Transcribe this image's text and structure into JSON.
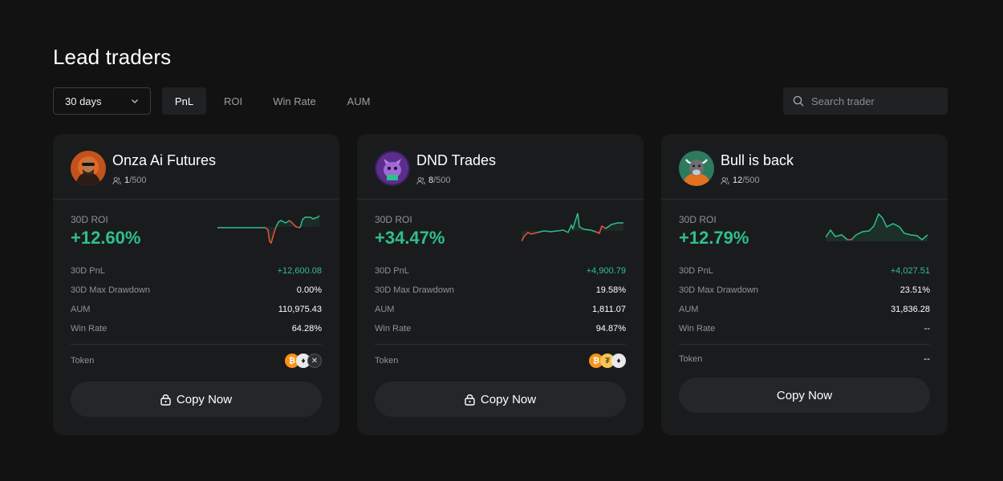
{
  "page": {
    "title": "Lead traders"
  },
  "filters": {
    "period": "30 days",
    "tabs": [
      {
        "label": "PnL",
        "active": true
      },
      {
        "label": "ROI",
        "active": false
      },
      {
        "label": "Win Rate",
        "active": false
      },
      {
        "label": "AUM",
        "active": false
      }
    ],
    "search_placeholder": "Search trader"
  },
  "colors": {
    "positive": "#2ec08b",
    "negative": "#f0523c",
    "background": "#121212",
    "card": "#1a1b1d"
  },
  "cards": [
    {
      "name": "Onza Ai Futures",
      "followers_current": "1",
      "followers_max": "/500",
      "roi_label": "30D ROI",
      "roi_value": "+12.60%",
      "pnl_label": "30D PnL",
      "pnl_value": "+12,600.08",
      "drawdown_label": "30D Max Drawdown",
      "drawdown_value": "0.00%",
      "aum_label": "AUM",
      "aum_value": "110,975.43",
      "winrate_label": "Win Rate",
      "winrate_value": "64.28%",
      "token_label": "Token",
      "tokens": [
        "bitcoin-icon",
        "ethereum-icon",
        "x-token-icon"
      ],
      "copy_label": "Copy Now",
      "locked": true,
      "avatar": "avatar-orange-hoodie"
    },
    {
      "name": "DND Trades",
      "followers_current": "8",
      "followers_max": "/500",
      "roi_label": "30D ROI",
      "roi_value": "+34.47%",
      "pnl_label": "30D PnL",
      "pnl_value": "+4,900.79",
      "drawdown_label": "30D Max Drawdown",
      "drawdown_value": "19.58%",
      "aum_label": "AUM",
      "aum_value": "1,811.07",
      "winrate_label": "Win Rate",
      "winrate_value": "94.87%",
      "token_label": "Token",
      "tokens": [
        "bitcoin-icon",
        "gold-coin-icon",
        "ethereum-icon"
      ],
      "copy_label": "Copy Now",
      "locked": true,
      "avatar": "avatar-purple-cat"
    },
    {
      "name": "Bull is back",
      "followers_current": "12",
      "followers_max": "/500",
      "roi_label": "30D ROI",
      "roi_value": "+12.79%",
      "pnl_label": "30D PnL",
      "pnl_value": "+4,027.51",
      "drawdown_label": "30D Max Drawdown",
      "drawdown_value": "23.51%",
      "aum_label": "AUM",
      "aum_value": "31,836.28",
      "winrate_label": "Win Rate",
      "winrate_value": "--",
      "token_label": "Token",
      "token_value": "--",
      "tokens": [],
      "copy_label": "Copy Now",
      "locked": false,
      "avatar": "avatar-green-bull"
    }
  ]
}
